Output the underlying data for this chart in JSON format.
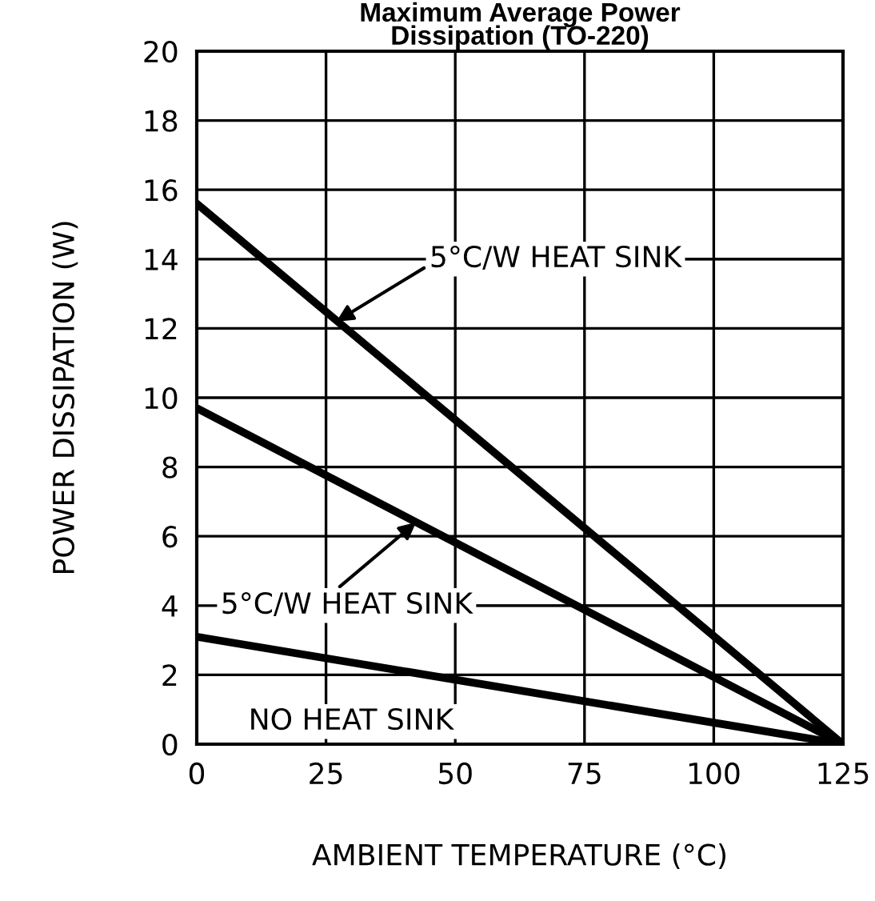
{
  "chart_data": {
    "type": "line",
    "title": "Maximum Average Power\nDissipation (TO-220)",
    "xlabel": "AMBIENT TEMPERATURE (°C)",
    "ylabel": "POWER DISSIPATION (W)",
    "x": [
      0,
      125
    ],
    "annotations": [
      {
        "text": "5°C/W HEAT SINK",
        "x": 27,
        "y": 12.2
      },
      {
        "text": "5°C/W HEAT SINK",
        "x": 42.4,
        "y": 6.4
      }
    ],
    "series": [
      {
        "color": "#000000",
        "values": [
          15.6,
          0
        ]
      },
      {
        "color": "#000000",
        "values": [
          9.7,
          0
        ]
      },
      {
        "name": "NO HEAT SINK",
        "color": "#000000",
        "values": [
          3.1,
          0
        ]
      }
    ],
    "xlim": [
      0,
      125
    ],
    "ylim": [
      0,
      20
    ],
    "xticks": [
      0,
      25,
      50,
      75,
      100,
      125
    ],
    "yticks": [
      0,
      2,
      4,
      6,
      8,
      10,
      12,
      14,
      16,
      18,
      20
    ],
    "grid": true,
    "legend": false,
    "marker": "none",
    "line_style": "solid"
  }
}
